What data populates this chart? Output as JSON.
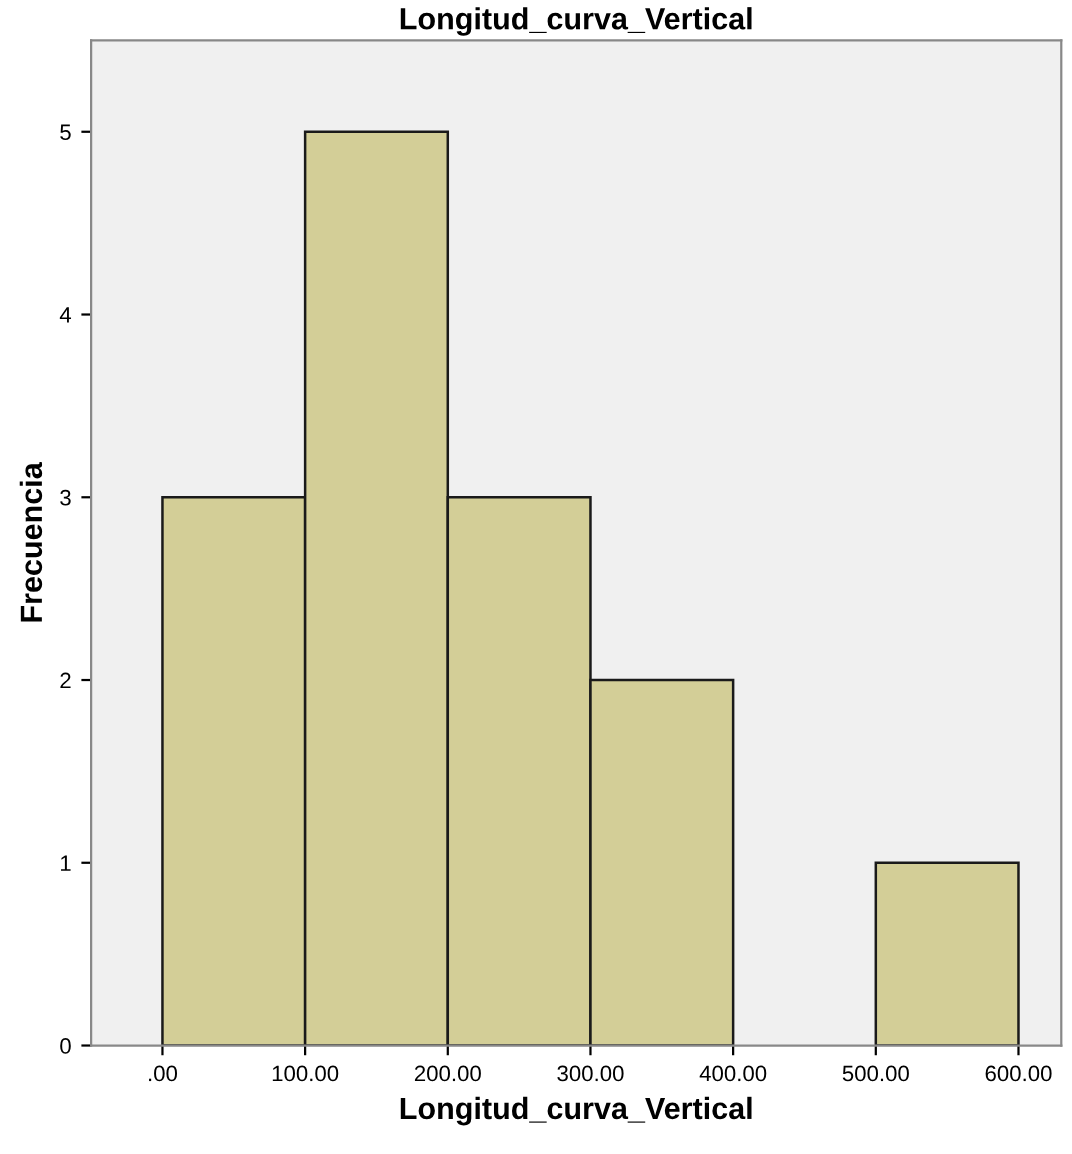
{
  "chart_data": {
    "type": "histogram",
    "title": "Longitud_curva_Vertical",
    "xlabel": "Longitud_curva_Vertical",
    "ylabel": "Frecuencia",
    "bins": [
      0,
      100,
      200,
      300,
      400,
      500,
      600
    ],
    "values": [
      3,
      5,
      3,
      2,
      0,
      1
    ],
    "color": "#d3ce97",
    "xlim": [
      -50,
      630
    ],
    "ylim": [
      0,
      5.5
    ],
    "xticks": [
      {
        "value": 0,
        "label": ".00"
      },
      {
        "value": 100,
        "label": "100.00"
      },
      {
        "value": 200,
        "label": "200.00"
      },
      {
        "value": 300,
        "label": "300.00"
      },
      {
        "value": 400,
        "label": "400.00"
      },
      {
        "value": 500,
        "label": "500.00"
      },
      {
        "value": 600,
        "label": "600.00"
      }
    ],
    "yticks": [
      0,
      1,
      2,
      3,
      4,
      5
    ],
    "grid": false
  }
}
